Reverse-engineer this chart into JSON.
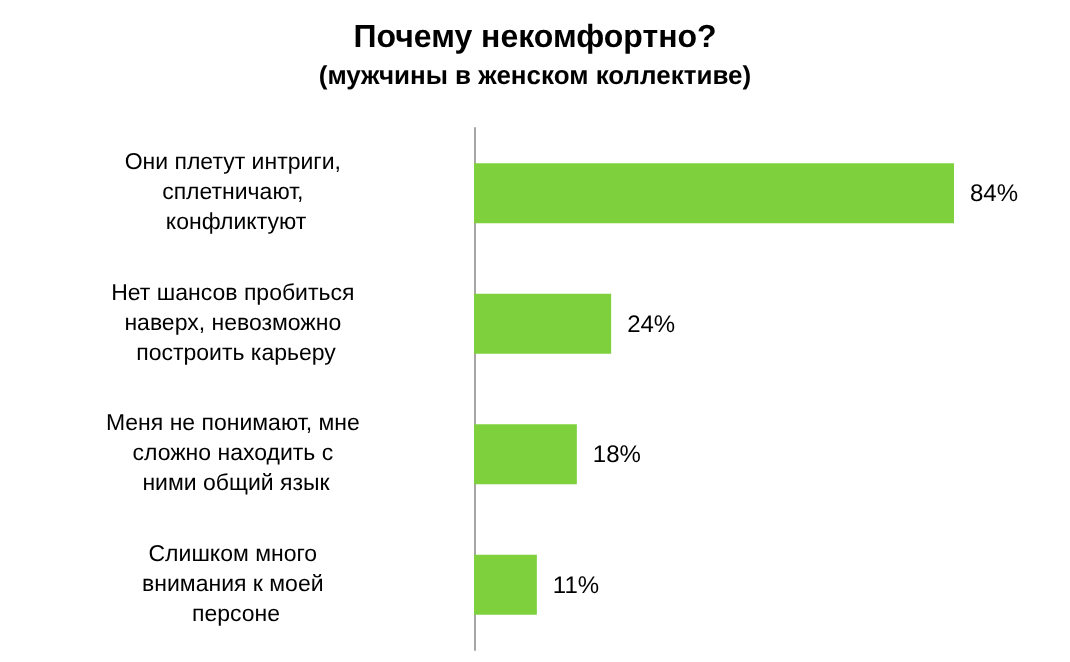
{
  "chart_data": {
    "type": "bar",
    "orientation": "horizontal",
    "title": "Почему некомфортно?",
    "subtitle": "(мужчины в женском коллективе)",
    "categories": [
      "Они плетут интриги, сплетничают, конфликтуют",
      "Нет шансов пробиться наверх, невозможно построить карьеру",
      "Меня не понимают, мне сложно находить с ними общий язык",
      "Слишком много внимания к моей персоне"
    ],
    "values": [
      84,
      24,
      18,
      11
    ],
    "value_labels": [
      "84%",
      "24%",
      "18%",
      "11%"
    ],
    "color": "#7ed03c"
  }
}
